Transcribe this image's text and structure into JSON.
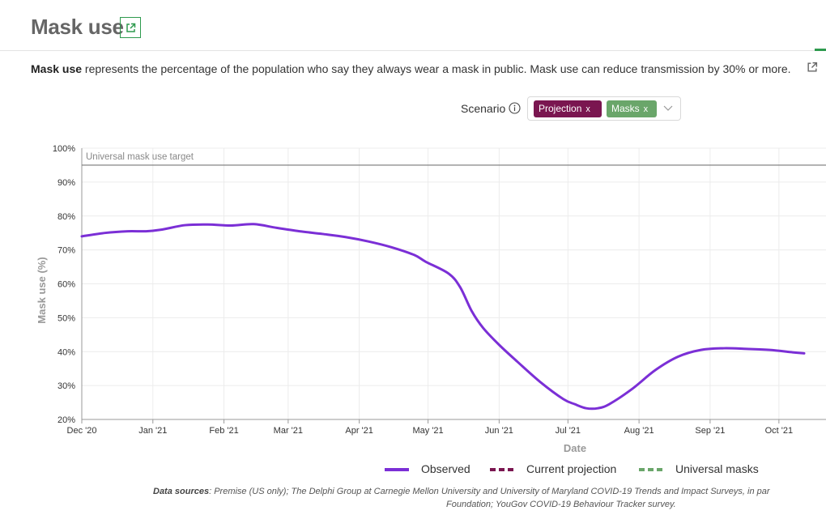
{
  "header": {
    "title": "Mask use",
    "link_icon": "external-link-icon"
  },
  "description": {
    "bold": "Mask use",
    "text": " represents the percentage of the population who say they always wear a mask in public. Mask use can reduce transmission by 30% or more.",
    "link_icon": "external-link-icon"
  },
  "scenario": {
    "label": "Scenario",
    "info_icon": "info-icon",
    "chips": [
      {
        "label": "Projection",
        "color": "#7a1650"
      },
      {
        "label": "Masks",
        "color": "#6aa66a"
      }
    ],
    "chip_remove": "x",
    "dropdown_icon": "chevron-down-icon"
  },
  "chart_data": {
    "type": "line",
    "title": "Mask use",
    "xlabel": "Date",
    "ylabel": "Mask use (%)",
    "ylim": [
      20,
      100
    ],
    "yticks": [
      20,
      30,
      40,
      50,
      60,
      70,
      80,
      90,
      100
    ],
    "ytick_labels": [
      "20%",
      "30%",
      "40%",
      "50%",
      "60%",
      "70%",
      "80%",
      "90%",
      "100%"
    ],
    "xlim_days": [
      0,
      315
    ],
    "xticks": [
      {
        "label": "Dec '20",
        "day": 0
      },
      {
        "label": "Jan '21",
        "day": 31
      },
      {
        "label": "Feb '21",
        "day": 62
      },
      {
        "label": "Mar '21",
        "day": 90
      },
      {
        "label": "Apr '21",
        "day": 121
      },
      {
        "label": "May '21",
        "day": 151
      },
      {
        "label": "Jun '21",
        "day": 182
      },
      {
        "label": "Jul '21",
        "day": 212
      },
      {
        "label": "Aug '21",
        "day": 243
      },
      {
        "label": "Sep '21",
        "day": 274
      },
      {
        "label": "Oct '21",
        "day": 304
      }
    ],
    "grid": true,
    "reference_line": {
      "label": "Universal mask use target",
      "value": 95
    },
    "series": [
      {
        "name": "Observed",
        "color": "#7b2fd6",
        "style": "solid",
        "days": [
          0,
          10,
          20,
          28,
          35,
          45,
          55,
          65,
          75,
          85,
          95,
          105,
          115,
          125,
          135,
          145,
          150,
          160,
          165,
          170,
          175,
          182,
          190,
          200,
          210,
          215,
          220,
          225,
          230,
          240,
          250,
          260,
          270,
          280,
          290,
          300,
          310,
          315
        ],
        "values": [
          74,
          75,
          75.5,
          75.5,
          76,
          77.3,
          77.5,
          77.2,
          77.6,
          76.5,
          75.5,
          74.7,
          73.8,
          72.5,
          70.8,
          68.5,
          66.5,
          63,
          59,
          52,
          47,
          42,
          37,
          31,
          26,
          24.5,
          23.3,
          23.3,
          24.5,
          29,
          34.5,
          38.5,
          40.5,
          41,
          40.8,
          40.5,
          39.8,
          39.5
        ]
      },
      {
        "name": "Current projection",
        "color": "#7a1650",
        "style": "dashed",
        "days": [],
        "values": []
      },
      {
        "name": "Universal masks",
        "color": "#6aa66a",
        "style": "dashed",
        "days": [],
        "values": []
      }
    ],
    "legend": [
      "Observed",
      "Current projection",
      "Universal masks"
    ],
    "legend_position": "bottom-center"
  },
  "sources": {
    "label": "Data sources",
    "line1": ": Premise (US only); The Delphi Group at Carnegie Mellon University and University of Maryland COVID-19 Trends and Impact Surveys, in par",
    "line2": "Foundation; YouGov COVID-19 Behaviour Tracker survey."
  }
}
